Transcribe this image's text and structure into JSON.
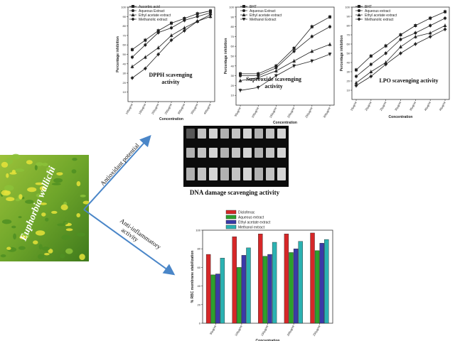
{
  "plant": {
    "name": "Euphorbia wallichi"
  },
  "arrows": {
    "antioxidant_label": "Antioxidant potential",
    "antiinflammatory_label_line1": "Anti-inflammatory",
    "antiinflammatory_label_line2": "activity"
  },
  "gel": {
    "caption": "DNA damage scavenging activity"
  },
  "colors": {
    "arrow": "#4a86c8",
    "red": "#d62728",
    "green": "#2ca02c",
    "blue": "#3a3aa8",
    "cyan": "#2bb2b2"
  },
  "chart_data": [
    {
      "type": "line",
      "title_line1": "DPPH scavenging",
      "title_line2": "activity",
      "ylabel": "Percentage inhibition",
      "xlabel": "Concentration",
      "categories": [
        "100µg/ml",
        "150µg/ml",
        "200µg/ml",
        "250µg/ml",
        "300µg/ml",
        "350µg/ml",
        "400µg/ml"
      ],
      "ylim": [
        0,
        100
      ],
      "yticks": [
        10,
        20,
        30,
        40,
        50,
        60,
        70,
        80,
        90,
        100
      ],
      "series": [
        {
          "name": "Ascorbic acid",
          "values": [
            55,
            65,
            75,
            83,
            88,
            93,
            96
          ]
        },
        {
          "name": "Aqueous Extract",
          "values": [
            47,
            60,
            73,
            78,
            86,
            90,
            94
          ]
        },
        {
          "name": "Ethyl acetate extract",
          "values": [
            37,
            47,
            57,
            70,
            78,
            85,
            90
          ]
        },
        {
          "name": "Methanolic extract",
          "values": [
            25,
            35,
            50,
            65,
            75,
            85,
            92
          ]
        }
      ]
    },
    {
      "type": "line",
      "title_line1": "Superoxide scavenging",
      "title_line2": "activity",
      "ylabel": "Percentage inhibition",
      "xlabel": "Concentration",
      "categories": [
        "50µg/ml",
        "100µg/ml",
        "150µg/ml",
        "200µg/ml",
        "250µg/ml",
        "300µg/ml"
      ],
      "ylim": [
        0,
        100
      ],
      "yticks": [
        10,
        20,
        30,
        40,
        50,
        60,
        70,
        80,
        90,
        100
      ],
      "series": [
        {
          "name": "BHT",
          "values": [
            32,
            32,
            40,
            58,
            80,
            90
          ]
        },
        {
          "name": "Aqueous Extract",
          "values": [
            30,
            30,
            38,
            55,
            70,
            80
          ]
        },
        {
          "name": "Ethyl acetate extract",
          "values": [
            25,
            28,
            35,
            45,
            55,
            62
          ]
        },
        {
          "name": "Methanol Extract",
          "values": [
            15,
            18,
            30,
            40,
            45,
            52
          ]
        }
      ]
    },
    {
      "type": "line",
      "title_line1": "LPO scavenging activity",
      "title_line2": "",
      "ylabel": "Percentage inhibition",
      "xlabel": "Concentration",
      "categories": [
        "15µg/ml",
        "20µg/ml",
        "25µg/ml",
        "30µg/ml",
        "35µg/ml",
        "40µg/ml",
        "45µg/ml"
      ],
      "ylim": [
        0,
        100
      ],
      "yticks": [
        10,
        20,
        30,
        40,
        50,
        60,
        70,
        80,
        90,
        100
      ],
      "series": [
        {
          "name": "BHT",
          "values": [
            32,
            47,
            58,
            70,
            80,
            88,
            95
          ]
        },
        {
          "name": "Aqueous extract",
          "values": [
            25,
            38,
            50,
            65,
            72,
            80,
            88
          ]
        },
        {
          "name": "Ethyl acetate extract",
          "values": [
            18,
            30,
            40,
            57,
            68,
            72,
            80
          ]
        },
        {
          "name": "Methanolic extract",
          "values": [
            15,
            25,
            38,
            50,
            60,
            68,
            76
          ]
        }
      ]
    },
    {
      "type": "bar",
      "title_line1": "",
      "title_line2": "",
      "ylabel": "% RBC membrane stabilization",
      "xlabel": "Concentration",
      "categories": [
        "50µg/ml",
        "100µg/ml",
        "150µg/ml",
        "200µg/ml",
        "250µg/ml"
      ],
      "ylim": [
        0,
        100
      ],
      "yticks": [
        0,
        20,
        40,
        60,
        80,
        100
      ],
      "series": [
        {
          "name": "Diclofenac",
          "values": [
            74,
            93,
            96,
            96,
            97
          ]
        },
        {
          "name": "Aqueous extract",
          "values": [
            52,
            60,
            72,
            76,
            78
          ]
        },
        {
          "name": "Ethyl acetate extract",
          "values": [
            53,
            73,
            74,
            80,
            86
          ]
        },
        {
          "name": "Methanol extract",
          "values": [
            70,
            81,
            87,
            88,
            90
          ]
        }
      ]
    }
  ]
}
